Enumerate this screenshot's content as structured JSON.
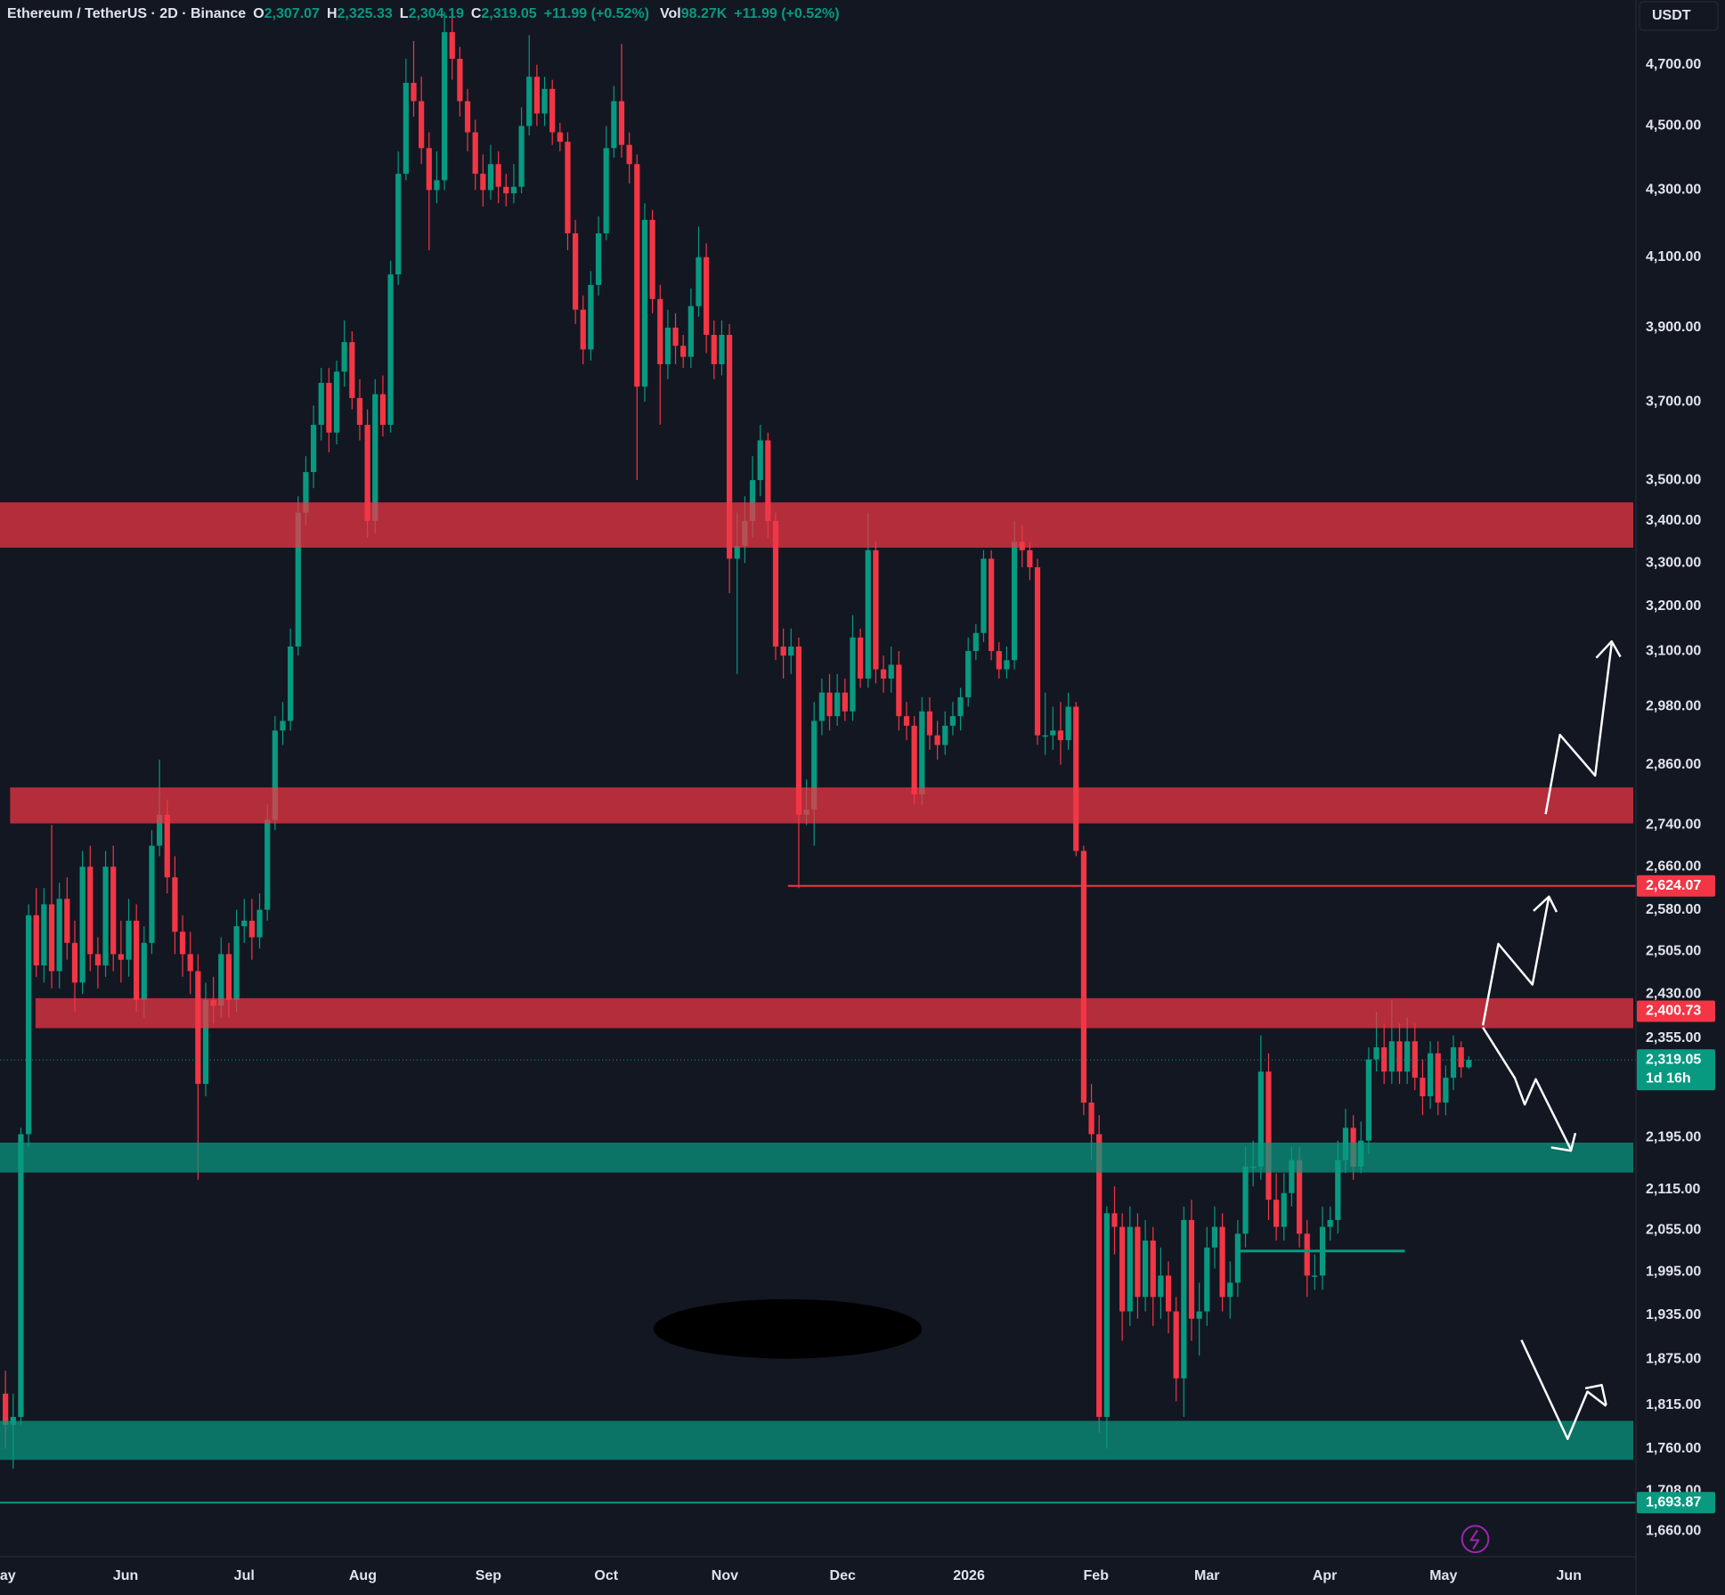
{
  "chart_data": {
    "type": "candlestick",
    "header": {
      "symbol": "Ethereum / TetherUS · 2D · Binance",
      "open_label": "O",
      "open": "2,307.07",
      "high_label": "H",
      "high": "2,325.33",
      "low_label": "L",
      "low": "2,304.19",
      "close_label": "C",
      "close": "2,319.05",
      "change": "+11.99 (+0.52%)",
      "vol_label": "Vol",
      "vol": "98.27K",
      "vol_change": "+11.99 (+0.52%)"
    },
    "currency": "USDT",
    "log_scale": true,
    "up_color": "#089981",
    "down_color": "#f23645",
    "xlim": [
      -0.71,
      211.7
    ],
    "xticks": [
      {
        "value": 0.3,
        "label": "ay"
      },
      {
        "value": 15.6,
        "label": "Jun"
      },
      {
        "value": 31,
        "label": "Jul"
      },
      {
        "value": 46.4,
        "label": "Aug"
      },
      {
        "value": 62.7,
        "label": "Sep"
      },
      {
        "value": 78,
        "label": "Oct"
      },
      {
        "value": 93.4,
        "label": "Nov"
      },
      {
        "value": 108.7,
        "label": "Dec"
      },
      {
        "value": 125.1,
        "label": "2026"
      },
      {
        "value": 141.6,
        "label": "Feb"
      },
      {
        "value": 156,
        "label": "Mar"
      },
      {
        "value": 171.3,
        "label": "Apr"
      },
      {
        "value": 186.7,
        "label": "May"
      },
      {
        "value": 203,
        "label": "Jun"
      }
    ],
    "ylim": [
      1630,
      4921
    ],
    "yticks": [
      {
        "value": 4700,
        "label": "4,700.00"
      },
      {
        "value": 4500,
        "label": "4,500.00"
      },
      {
        "value": 4300,
        "label": "4,300.00"
      },
      {
        "value": 4100,
        "label": "4,100.00"
      },
      {
        "value": 3900,
        "label": "3,900.00"
      },
      {
        "value": 3700,
        "label": "3,700.00"
      },
      {
        "value": 3500,
        "label": "3,500.00"
      },
      {
        "value": 3400,
        "label": "3,400.00"
      },
      {
        "value": 3300,
        "label": "3,300.00"
      },
      {
        "value": 3200,
        "label": "3,200.00"
      },
      {
        "value": 3100,
        "label": "3,100.00"
      },
      {
        "value": 2980,
        "label": "2,980.00"
      },
      {
        "value": 2860,
        "label": "2,860.00"
      },
      {
        "value": 2740,
        "label": "2,740.00"
      },
      {
        "value": 2660,
        "label": "2,660.00"
      },
      {
        "value": 2580,
        "label": "2,580.00"
      },
      {
        "value": 2505,
        "label": "2,505.00"
      },
      {
        "value": 2430,
        "label": "2,430.00"
      },
      {
        "value": 2355,
        "label": "2,355.00"
      },
      {
        "value": 2195,
        "label": "2,195.00"
      },
      {
        "value": 2115,
        "label": "2,115.00"
      },
      {
        "value": 2055,
        "label": "2,055.00"
      },
      {
        "value": 1995,
        "label": "1,995.00"
      },
      {
        "value": 1935,
        "label": "1,935.00"
      },
      {
        "value": 1875,
        "label": "1,875.00"
      },
      {
        "value": 1815,
        "label": "1,815.00"
      },
      {
        "value": 1760,
        "label": "1,760.00"
      },
      {
        "value": 1708,
        "label": "1,708.00"
      },
      {
        "value": 1660,
        "label": "1,660.00"
      }
    ],
    "zones": [
      {
        "from": 3336,
        "to": 3445,
        "x0": -0.71,
        "color": "#f23645"
      },
      {
        "from": 2743,
        "to": 2814,
        "x0": 0.6,
        "color": "#f23645"
      },
      {
        "from": 2372,
        "to": 2423,
        "x0": 3.9,
        "color": "#f23645"
      },
      {
        "from": 2141,
        "to": 2187,
        "x0": -0.71,
        "color": "#089981"
      },
      {
        "from": 1746,
        "to": 1795,
        "x0": -0.71,
        "color": "#089981"
      }
    ],
    "segments": [
      {
        "value": 2025,
        "x0": 160.3,
        "x1": 181.7,
        "color": "#089981"
      }
    ],
    "levels": [
      {
        "value": 2624.07,
        "label": "2,624.07",
        "color": "#f23645",
        "x0": 101.6
      },
      {
        "value": 2400.73,
        "label": "2,400.73",
        "color": "#f23645"
      },
      {
        "value": 2319.05,
        "label": "2,319.05",
        "countdown": "1d 16h",
        "color": "#089981",
        "dotted": true
      },
      {
        "value": 1693.87,
        "label": "1,693.87",
        "color": "#089981",
        "x0": -0.71
      }
    ],
    "ohlc": [
      [
        1830,
        1860,
        1760,
        1790
      ],
      [
        1790,
        1830,
        1735,
        1800
      ],
      [
        1800,
        2210,
        1790,
        2200
      ],
      [
        2200,
        2590,
        2180,
        2570
      ],
      [
        2570,
        2620,
        2460,
        2480
      ],
      [
        2480,
        2620,
        2450,
        2590
      ],
      [
        2590,
        2740,
        2440,
        2470
      ],
      [
        2470,
        2630,
        2440,
        2600
      ],
      [
        2600,
        2640,
        2490,
        2520
      ],
      [
        2520,
        2560,
        2400,
        2450
      ],
      [
        2450,
        2690,
        2430,
        2660
      ],
      [
        2660,
        2700,
        2470,
        2500
      ],
      [
        2500,
        2530,
        2440,
        2480
      ],
      [
        2480,
        2690,
        2460,
        2660
      ],
      [
        2660,
        2700,
        2470,
        2500
      ],
      [
        2500,
        2560,
        2450,
        2490
      ],
      [
        2490,
        2600,
        2460,
        2560
      ],
      [
        2560,
        2590,
        2400,
        2420
      ],
      [
        2420,
        2550,
        2390,
        2520
      ],
      [
        2520,
        2730,
        2500,
        2700
      ],
      [
        2700,
        2870,
        2680,
        2760
      ],
      [
        2760,
        2790,
        2610,
        2640
      ],
      [
        2640,
        2680,
        2500,
        2540
      ],
      [
        2540,
        2570,
        2460,
        2500
      ],
      [
        2500,
        2540,
        2430,
        2470
      ],
      [
        2470,
        2500,
        2130,
        2280
      ],
      [
        2280,
        2450,
        2260,
        2420
      ],
      [
        2420,
        2460,
        2380,
        2410
      ],
      [
        2410,
        2530,
        2390,
        2500
      ],
      [
        2500,
        2520,
        2390,
        2420
      ],
      [
        2420,
        2580,
        2400,
        2550
      ],
      [
        2550,
        2600,
        2520,
        2560
      ],
      [
        2560,
        2600,
        2490,
        2530
      ],
      [
        2530,
        2610,
        2510,
        2580
      ],
      [
        2580,
        2780,
        2560,
        2750
      ],
      [
        2750,
        2960,
        2730,
        2930
      ],
      [
        2930,
        2990,
        2900,
        2950
      ],
      [
        2950,
        3150,
        2930,
        3110
      ],
      [
        3110,
        3460,
        3090,
        3420
      ],
      [
        3420,
        3560,
        3390,
        3520
      ],
      [
        3520,
        3690,
        3480,
        3640
      ],
      [
        3640,
        3790,
        3600,
        3750
      ],
      [
        3750,
        3790,
        3570,
        3620
      ],
      [
        3620,
        3810,
        3590,
        3780
      ],
      [
        3780,
        3920,
        3740,
        3860
      ],
      [
        3860,
        3890,
        3680,
        3710
      ],
      [
        3710,
        3760,
        3600,
        3640
      ],
      [
        3640,
        3680,
        3360,
        3400
      ],
      [
        3400,
        3760,
        3370,
        3720
      ],
      [
        3720,
        3770,
        3610,
        3640
      ],
      [
        3640,
        4090,
        3620,
        4050
      ],
      [
        4050,
        4420,
        4020,
        4350
      ],
      [
        4350,
        4720,
        4330,
        4640
      ],
      [
        4640,
        4780,
        4530,
        4580
      ],
      [
        4580,
        4660,
        4380,
        4430
      ],
      [
        4430,
        4480,
        4120,
        4300
      ],
      [
        4300,
        4420,
        4260,
        4330
      ],
      [
        4330,
        4880,
        4300,
        4810
      ],
      [
        4810,
        4860,
        4650,
        4720
      ],
      [
        4720,
        4760,
        4530,
        4580
      ],
      [
        4580,
        4620,
        4420,
        4480
      ],
      [
        4480,
        4520,
        4300,
        4350
      ],
      [
        4350,
        4410,
        4250,
        4300
      ],
      [
        4300,
        4440,
        4270,
        4380
      ],
      [
        4380,
        4420,
        4260,
        4310
      ],
      [
        4310,
        4350,
        4250,
        4290
      ],
      [
        4290,
        4380,
        4260,
        4310
      ],
      [
        4310,
        4560,
        4290,
        4500
      ],
      [
        4500,
        4800,
        4470,
        4660
      ],
      [
        4660,
        4700,
        4500,
        4540
      ],
      [
        4540,
        4660,
        4500,
        4620
      ],
      [
        4620,
        4650,
        4440,
        4480
      ],
      [
        4480,
        4510,
        4420,
        4450
      ],
      [
        4450,
        4480,
        4120,
        4170
      ],
      [
        4170,
        4210,
        3910,
        3950
      ],
      [
        3950,
        3990,
        3800,
        3840
      ],
      [
        3840,
        4060,
        3810,
        4020
      ],
      [
        4020,
        4220,
        3990,
        4170
      ],
      [
        4170,
        4500,
        4150,
        4430
      ],
      [
        4430,
        4630,
        4400,
        4580
      ],
      [
        4580,
        4770,
        4400,
        4440
      ],
      [
        4440,
        4480,
        4320,
        4380
      ],
      [
        4380,
        4410,
        3500,
        3740
      ],
      [
        3740,
        4260,
        3700,
        4210
      ],
      [
        4210,
        4240,
        3940,
        3980
      ],
      [
        3980,
        4020,
        3640,
        3800
      ],
      [
        3800,
        3950,
        3760,
        3900
      ],
      [
        3900,
        3940,
        3800,
        3850
      ],
      [
        3850,
        3880,
        3790,
        3820
      ],
      [
        3820,
        4010,
        3790,
        3960
      ],
      [
        3960,
        4190,
        3930,
        4100
      ],
      [
        4100,
        4140,
        3830,
        3880
      ],
      [
        3880,
        3920,
        3760,
        3800
      ],
      [
        3800,
        3920,
        3770,
        3880
      ],
      [
        3880,
        3910,
        3230,
        3310
      ],
      [
        3310,
        3420,
        3050,
        3340
      ],
      [
        3340,
        3460,
        3300,
        3400
      ],
      [
        3400,
        3560,
        3360,
        3500
      ],
      [
        3500,
        3640,
        3460,
        3600
      ],
      [
        3600,
        3620,
        3360,
        3400
      ],
      [
        3400,
        3420,
        3080,
        3110
      ],
      [
        3110,
        3150,
        3040,
        3090
      ],
      [
        3090,
        3150,
        3050,
        3110
      ],
      [
        3110,
        3130,
        2620,
        2760
      ],
      [
        2760,
        2830,
        2740,
        2770
      ],
      [
        2770,
        2990,
        2700,
        2950
      ],
      [
        2950,
        3040,
        2920,
        3010
      ],
      [
        3010,
        3050,
        2930,
        2960
      ],
      [
        2960,
        3050,
        2940,
        3010
      ],
      [
        3010,
        3040,
        2950,
        2970
      ],
      [
        2970,
        3180,
        2950,
        3130
      ],
      [
        3130,
        3150,
        3020,
        3040
      ],
      [
        3040,
        3420,
        3020,
        3330
      ],
      [
        3330,
        3350,
        3030,
        3060
      ],
      [
        3060,
        3090,
        3010,
        3040
      ],
      [
        3040,
        3110,
        3010,
        3070
      ],
      [
        3070,
        3100,
        2930,
        2960
      ],
      [
        2960,
        2990,
        2910,
        2940
      ],
      [
        2940,
        2960,
        2780,
        2800
      ],
      [
        2800,
        3000,
        2780,
        2970
      ],
      [
        2970,
        3000,
        2890,
        2920
      ],
      [
        2920,
        2950,
        2870,
        2900
      ],
      [
        2900,
        2970,
        2880,
        2940
      ],
      [
        2940,
        2990,
        2920,
        2960
      ],
      [
        2960,
        3020,
        2930,
        3000
      ],
      [
        3000,
        3130,
        2980,
        3100
      ],
      [
        3100,
        3160,
        3080,
        3140
      ],
      [
        3140,
        3330,
        3120,
        3310
      ],
      [
        3310,
        3330,
        3080,
        3100
      ],
      [
        3100,
        3120,
        3040,
        3060
      ],
      [
        3060,
        3110,
        3040,
        3080
      ],
      [
        3080,
        3400,
        3060,
        3350
      ],
      [
        3350,
        3390,
        3290,
        3330
      ],
      [
        3330,
        3350,
        3260,
        3290
      ],
      [
        3290,
        3310,
        2900,
        2920
      ],
      [
        2920,
        3010,
        2880,
        2920
      ],
      [
        2920,
        2980,
        2890,
        2930
      ],
      [
        2930,
        2990,
        2860,
        2910
      ],
      [
        2910,
        3010,
        2890,
        2980
      ],
      [
        2980,
        2990,
        2680,
        2690
      ],
      [
        2690,
        2700,
        2230,
        2250
      ],
      [
        2250,
        2280,
        2160,
        2200
      ],
      [
        2200,
        2230,
        1780,
        1800
      ],
      [
        1800,
        2090,
        1760,
        2080
      ],
      [
        2080,
        2120,
        2020,
        2060
      ],
      [
        2060,
        2080,
        1900,
        1940
      ],
      [
        1940,
        2090,
        1920,
        2060
      ],
      [
        2060,
        2080,
        1930,
        1960
      ],
      [
        1960,
        2070,
        1940,
        2040
      ],
      [
        2040,
        2060,
        1920,
        1960
      ],
      [
        1960,
        2030,
        1930,
        1990
      ],
      [
        1990,
        2010,
        1910,
        1940
      ],
      [
        1940,
        1960,
        1820,
        1850
      ],
      [
        1850,
        2090,
        1800,
        2070
      ],
      [
        2070,
        2100,
        1900,
        1930
      ],
      [
        1930,
        1980,
        1880,
        1940
      ],
      [
        1940,
        2060,
        1920,
        2030
      ],
      [
        2030,
        2090,
        2000,
        2060
      ],
      [
        2060,
        2080,
        1940,
        1960
      ],
      [
        1960,
        2010,
        1930,
        1980
      ],
      [
        1980,
        2070,
        1960,
        2050
      ],
      [
        2050,
        2180,
        2030,
        2150
      ],
      [
        2150,
        2190,
        2120,
        2150
      ],
      [
        2150,
        2360,
        2130,
        2300
      ],
      [
        2300,
        2330,
        2070,
        2100
      ],
      [
        2100,
        2140,
        2040,
        2060
      ],
      [
        2060,
        2140,
        2040,
        2110
      ],
      [
        2110,
        2180,
        2090,
        2160
      ],
      [
        2160,
        2180,
        2030,
        2050
      ],
      [
        2050,
        2070,
        1960,
        1990
      ],
      [
        1990,
        2020,
        1970,
        1990
      ],
      [
        1990,
        2090,
        1970,
        2060
      ],
      [
        2060,
        2090,
        2040,
        2070
      ],
      [
        2070,
        2190,
        2050,
        2160
      ],
      [
        2160,
        2240,
        2140,
        2210
      ],
      [
        2210,
        2230,
        2130,
        2150
      ],
      [
        2150,
        2220,
        2140,
        2190
      ],
      [
        2190,
        2340,
        2170,
        2320
      ],
      [
        2320,
        2400,
        2300,
        2340
      ],
      [
        2340,
        2380,
        2280,
        2300
      ],
      [
        2300,
        2420,
        2280,
        2350
      ],
      [
        2350,
        2380,
        2280,
        2300
      ],
      [
        2300,
        2390,
        2280,
        2350
      ],
      [
        2350,
        2380,
        2270,
        2290
      ],
      [
        2290,
        2320,
        2230,
        2260
      ],
      [
        2260,
        2350,
        2240,
        2330
      ],
      [
        2330,
        2350,
        2230,
        2250
      ],
      [
        2250,
        2310,
        2230,
        2290
      ],
      [
        2290,
        2360,
        2270,
        2340
      ],
      [
        2340,
        2350,
        2290,
        2307.07
      ],
      [
        2307.07,
        2325.33,
        2304.19,
        2319.05
      ]
    ]
  }
}
